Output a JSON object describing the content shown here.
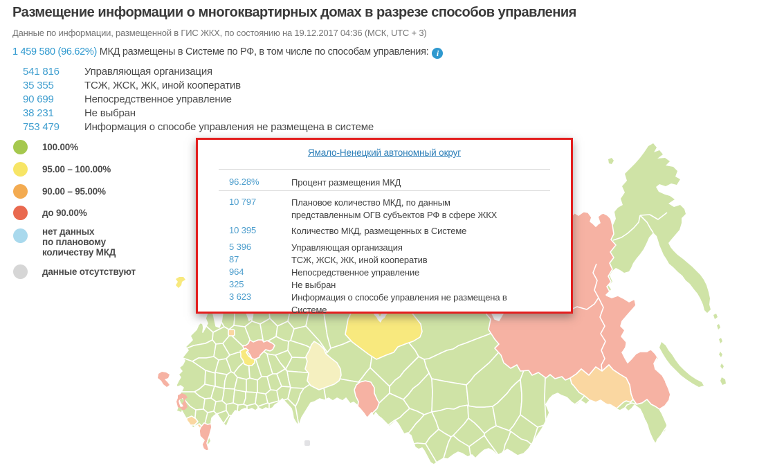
{
  "page": {
    "background": "#ffffff"
  },
  "header": {
    "title": "Размещение информации о многоквартирных домах в разрезе способов управления",
    "subtitle": "Данные по информации, размещенной в ГИС ЖКХ, по состоянию на 19.12.2017 04:36 (МСК, UTC + 3)",
    "stats_value": "1 459 580 (96.62%)",
    "stats_label": "МКД размещены в Системе по РФ, в том числе по способам управления:",
    "info_icon": "i",
    "management_rows": [
      {
        "value": "541 816",
        "label": "Управляющая организация"
      },
      {
        "value": "35 355",
        "label": "ТСЖ, ЖСК, ЖК, иной кооператив"
      },
      {
        "value": "90 699",
        "label": "Непосредственное управление"
      },
      {
        "value": "38 231",
        "label": "Не выбран"
      },
      {
        "value": "753 479",
        "label": "Информация о способе управления не размещена в системе"
      }
    ]
  },
  "legend": {
    "items": [
      {
        "color": "#a5c84e",
        "label": "100.00%"
      },
      {
        "color": "#f7e566",
        "label": "95.00 – 100.00%"
      },
      {
        "color": "#f3ab51",
        "label": "90.00 – 95.00%"
      },
      {
        "color": "#e9694f",
        "label": "до 90.00%"
      },
      {
        "color": "#a9d9ed",
        "label": "нет данных\nпо плановому\nколичеству МКД"
      },
      {
        "color": "#d6d6d6",
        "label": "данные отсутствуют"
      }
    ]
  },
  "tooltip": {
    "border_color": "#e31e1e",
    "region_link": "Ямало-Ненецкий автономный округ",
    "percent_row": {
      "value": "96.28%",
      "label": "Процент размещения МКД"
    },
    "planned_row": {
      "value": "10 797",
      "label": "Плановое количество МКД, по данным представленным ОГВ субъектов РФ в сфере ЖКХ"
    },
    "placed_row": {
      "value": "10 395",
      "label": "Количество МКД, размещенных в Системе"
    },
    "management_rows": [
      {
        "value": "5 396",
        "label": "Управляющая организация"
      },
      {
        "value": "87",
        "label": "ТСЖ, ЖСК, ЖК, иной кооператив"
      },
      {
        "value": "964",
        "label": "Непосредственное управление"
      },
      {
        "value": "325",
        "label": "Не выбран"
      },
      {
        "value": "3 623",
        "label": "Информация о способе управления не размещена в Системе"
      }
    ]
  },
  "map": {
    "category_fills": {
      "green": "#cfe3a6",
      "yellow": "#f8e97e",
      "pale": "#f5f0c0",
      "orange": "#fad7a1",
      "red": "#f6b2a3",
      "gray": "#e2e2e5"
    },
    "categories": {
      "green": "100.00%",
      "yellow": "95.00 – 100.00%",
      "pale": "95.00 – 100.00%",
      "orange": "90.00 – 95.00%",
      "red": "до 90.00%",
      "gray": "данные отсутствуют"
    }
  }
}
